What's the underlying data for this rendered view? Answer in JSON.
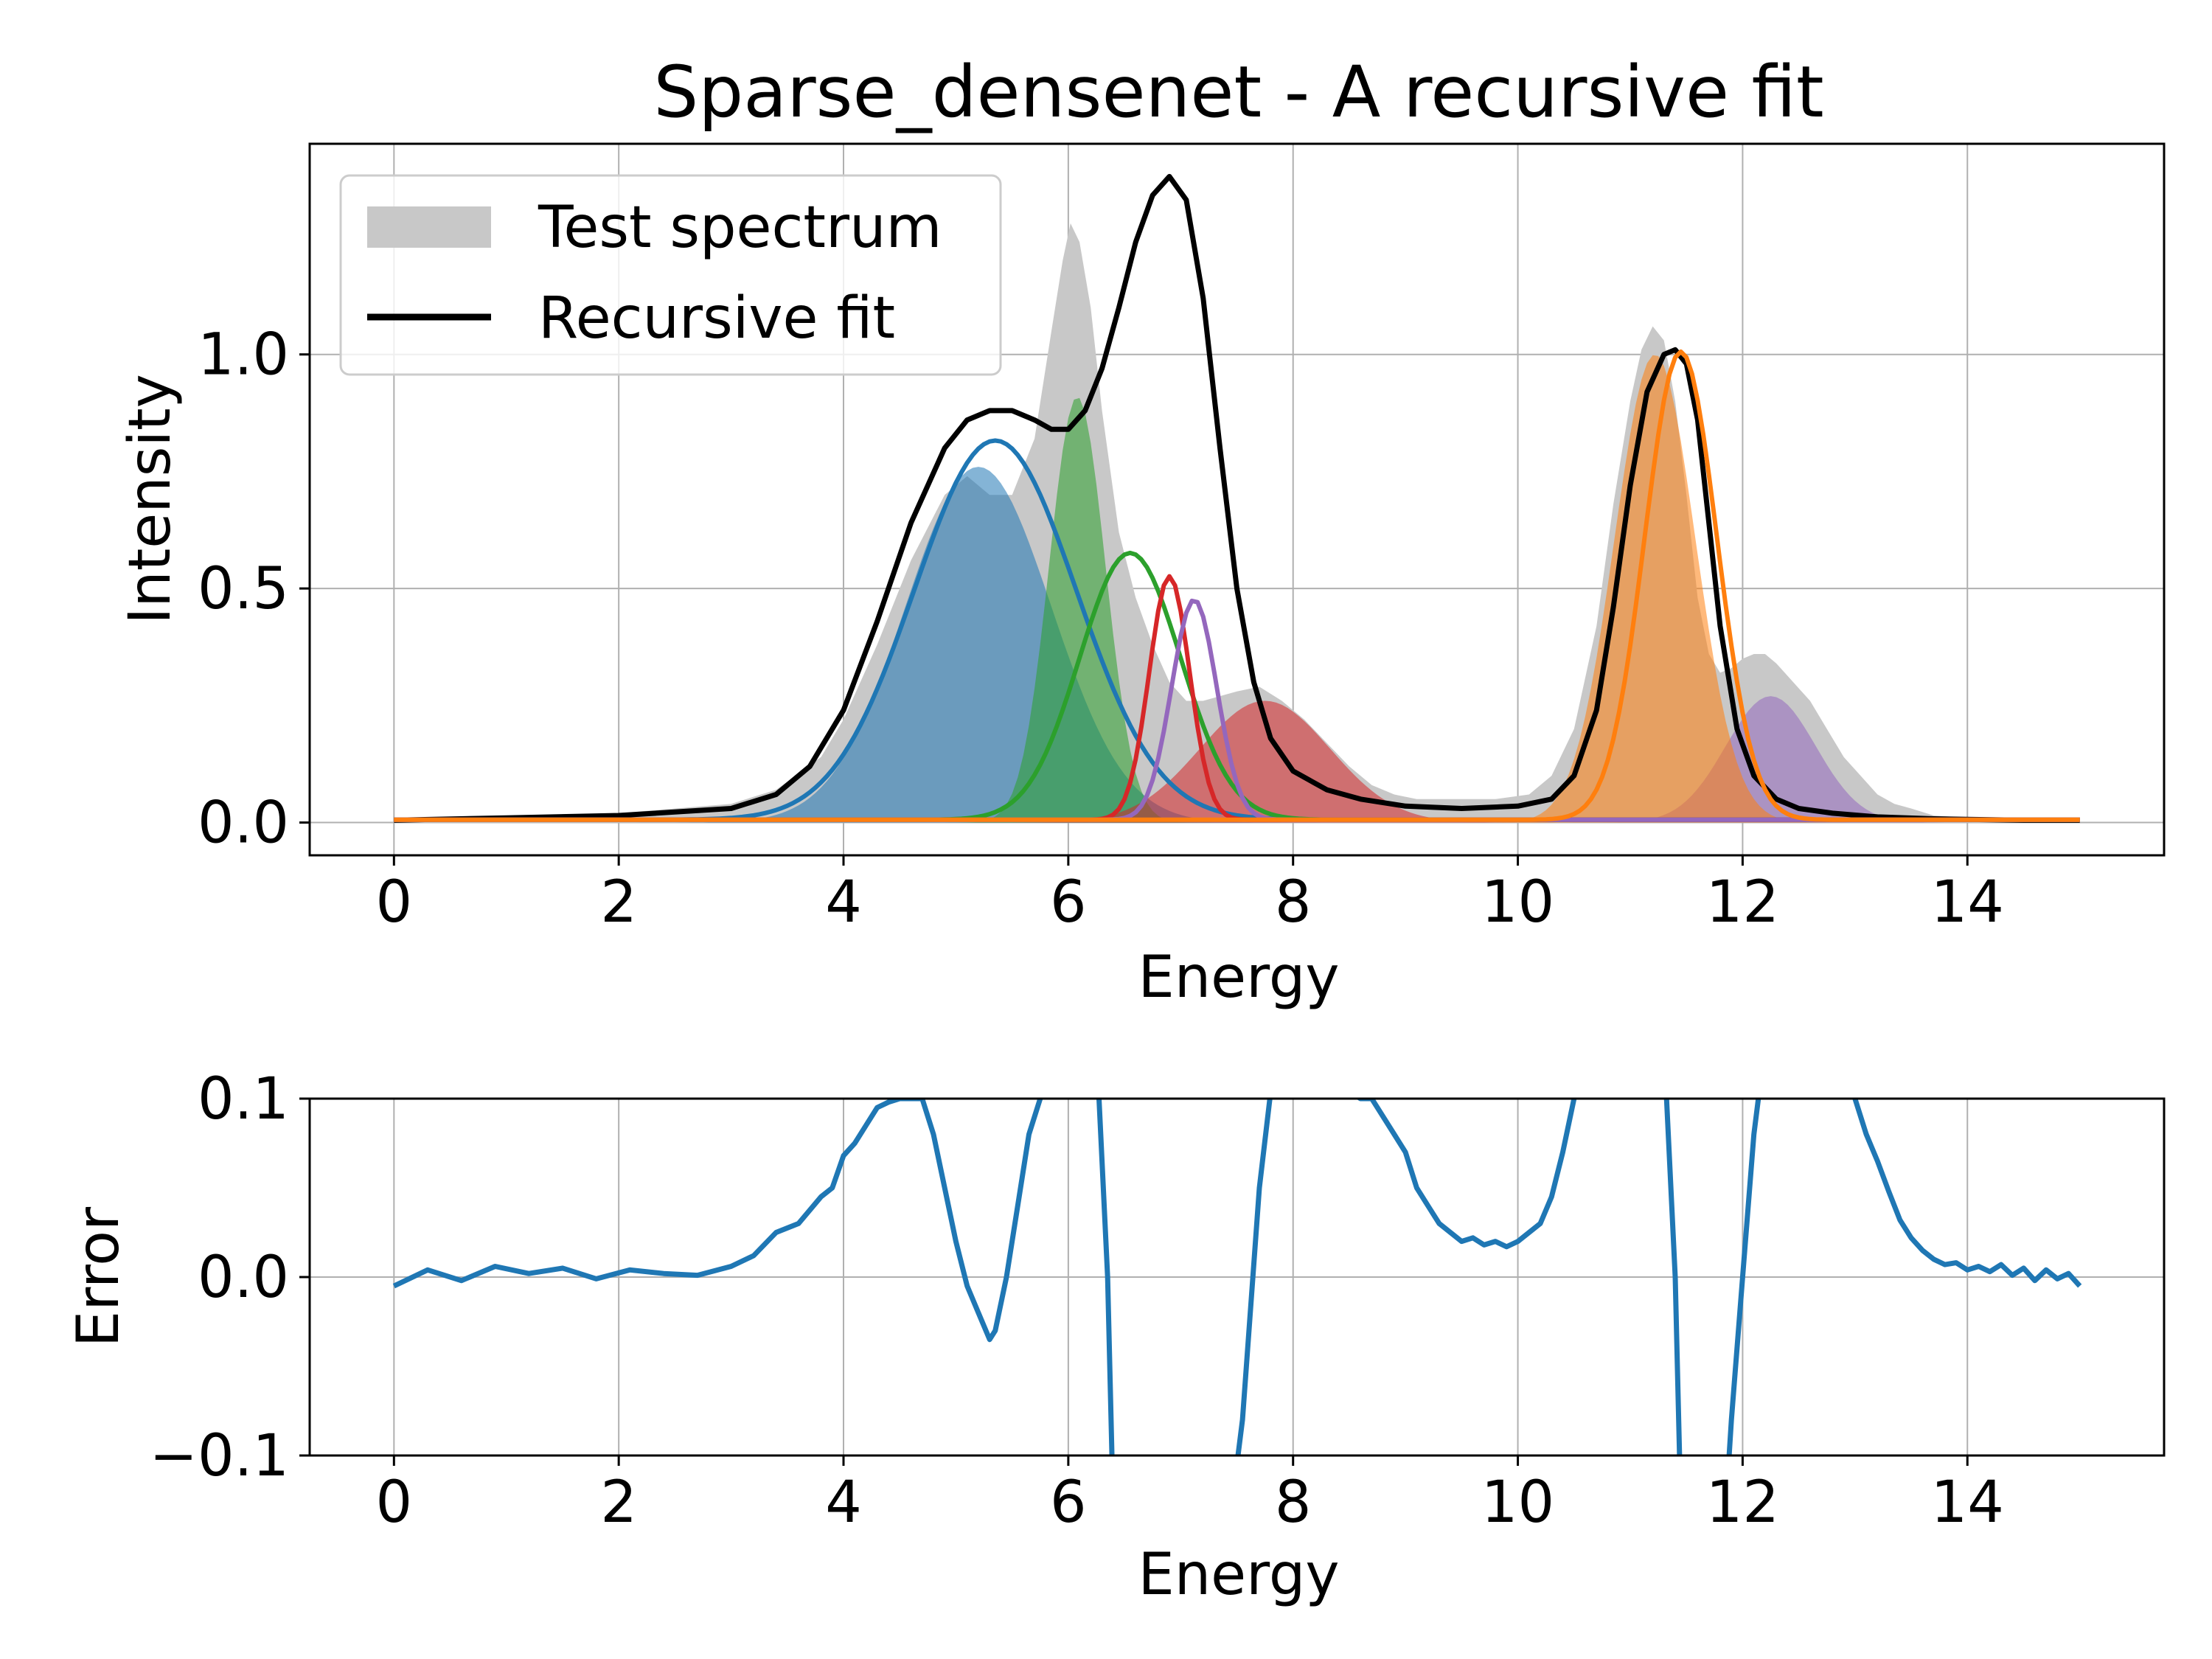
{
  "chart_data": [
    {
      "type": "area",
      "title": "Sparse_densenet - A recursive fit",
      "xlabel": "Energy",
      "ylabel": "Intensity",
      "xlim": [
        -0.75,
        15.75
      ],
      "ylim": [
        -0.07,
        1.45
      ],
      "xticks": [
        "0",
        "2",
        "4",
        "6",
        "8",
        "10",
        "12",
        "14"
      ],
      "xtick_values": [
        0,
        2,
        4,
        6,
        8,
        10,
        12,
        14
      ],
      "yticks": [
        "0.0",
        "0.5",
        "1.0"
      ],
      "ytick_values": [
        0,
        0.5,
        1.0
      ],
      "grid": true,
      "legend_position": "top-left",
      "legend": [
        {
          "label": "Test spectrum",
          "kind": "patch",
          "color": "#c8c8c8"
        },
        {
          "label": "Recursive fit",
          "kind": "line",
          "color": "#000000"
        }
      ],
      "test_spectrum": {
        "name": "Test spectrum",
        "color": "#c8c8c8",
        "x": [
          0,
          1,
          2,
          3,
          3.4,
          3.8,
          4.0,
          4.3,
          4.6,
          4.9,
          5.1,
          5.3,
          5.5,
          5.7,
          5.85,
          5.95,
          6.02,
          6.1,
          6.2,
          6.3,
          6.45,
          6.6,
          6.75,
          6.9,
          7.05,
          7.2,
          7.35,
          7.5,
          7.7,
          7.9,
          8.1,
          8.3,
          8.5,
          8.7,
          8.9,
          9.1,
          9.3,
          9.5,
          9.8,
          10.1,
          10.3,
          10.5,
          10.7,
          10.85,
          11.0,
          11.1,
          11.2,
          11.3,
          11.4,
          11.5,
          11.6,
          11.7,
          11.8,
          11.9,
          12.0,
          12.1,
          12.2,
          12.3,
          12.45,
          12.6,
          12.75,
          12.9,
          13.05,
          13.2,
          13.35,
          13.5,
          13.7,
          14.0,
          14.5,
          15.0
        ],
        "values": [
          0.005,
          0.01,
          0.02,
          0.04,
          0.07,
          0.14,
          0.22,
          0.38,
          0.56,
          0.7,
          0.74,
          0.7,
          0.7,
          0.82,
          1.05,
          1.2,
          1.28,
          1.24,
          1.1,
          0.88,
          0.62,
          0.48,
          0.38,
          0.3,
          0.26,
          0.26,
          0.27,
          0.28,
          0.29,
          0.26,
          0.22,
          0.17,
          0.12,
          0.08,
          0.06,
          0.05,
          0.05,
          0.05,
          0.05,
          0.06,
          0.1,
          0.2,
          0.42,
          0.68,
          0.9,
          1.01,
          1.06,
          1.03,
          0.9,
          0.7,
          0.48,
          0.36,
          0.32,
          0.33,
          0.35,
          0.36,
          0.36,
          0.34,
          0.3,
          0.26,
          0.2,
          0.14,
          0.1,
          0.06,
          0.04,
          0.03,
          0.015,
          0.01,
          0.005,
          0.005
        ]
      },
      "recursive_fit": {
        "name": "Recursive fit",
        "color": "#000000",
        "x": [
          0,
          1,
          2,
          3,
          3.4,
          3.7,
          4.0,
          4.3,
          4.6,
          4.9,
          5.1,
          5.3,
          5.5,
          5.7,
          5.85,
          6.0,
          6.15,
          6.3,
          6.45,
          6.6,
          6.75,
          6.9,
          7.05,
          7.2,
          7.35,
          7.5,
          7.65,
          7.8,
          8.0,
          8.3,
          8.6,
          9.0,
          9.5,
          10.0,
          10.3,
          10.5,
          10.7,
          10.85,
          11.0,
          11.15,
          11.3,
          11.4,
          11.5,
          11.6,
          11.7,
          11.8,
          11.95,
          12.1,
          12.3,
          12.5,
          12.8,
          13.2,
          13.7,
          14.5,
          15.0
        ],
        "values": [
          0.005,
          0.01,
          0.015,
          0.03,
          0.06,
          0.12,
          0.24,
          0.43,
          0.64,
          0.8,
          0.86,
          0.88,
          0.88,
          0.86,
          0.84,
          0.84,
          0.88,
          0.97,
          1.1,
          1.24,
          1.34,
          1.38,
          1.33,
          1.12,
          0.8,
          0.5,
          0.3,
          0.18,
          0.11,
          0.07,
          0.05,
          0.035,
          0.03,
          0.035,
          0.05,
          0.1,
          0.24,
          0.46,
          0.72,
          0.92,
          1.0,
          1.01,
          0.98,
          0.86,
          0.64,
          0.42,
          0.2,
          0.1,
          0.05,
          0.03,
          0.02,
          0.012,
          0.008,
          0.005,
          0.005
        ]
      },
      "components": [
        {
          "color": "#1f77b4",
          "fill": "#1f77b4",
          "filled_center": 5.2,
          "filled_amp": 0.76,
          "filled_sigma": 0.65,
          "line_center": 5.35,
          "line_amp": 0.81,
          "line_sigma": 0.72
        },
        {
          "color": "#2ca02c",
          "fill": "#2ca02c",
          "filled_center": 6.08,
          "filled_amp": 0.91,
          "filled_sigma": 0.25,
          "line_center": 6.55,
          "line_amp": 0.57,
          "line_sigma": 0.45
        },
        {
          "color": "#d62728",
          "fill": "#d62728",
          "filled_center": 7.75,
          "filled_amp": 0.26,
          "filled_sigma": 0.58,
          "line_center": 6.9,
          "line_amp": 0.52,
          "line_sigma": 0.18
        },
        {
          "color": "#9467bd",
          "fill": "#9467bd",
          "filled_center": 12.25,
          "filled_amp": 0.27,
          "filled_sigma": 0.4,
          "line_center": 7.12,
          "line_amp": 0.47,
          "line_sigma": 0.2
        },
        {
          "color": "#ff7f0e",
          "fill": "#ff7f0e",
          "filled_center": 11.22,
          "filled_amp": 1.0,
          "filled_sigma": 0.36,
          "line_center": 11.45,
          "line_amp": 1.0,
          "line_sigma": 0.32
        }
      ]
    },
    {
      "type": "line",
      "title": "",
      "xlabel": "Energy",
      "ylabel": "Error",
      "xlim": [
        -0.75,
        15.75
      ],
      "ylim": [
        -0.1,
        0.1
      ],
      "xticks": [
        "0",
        "2",
        "4",
        "6",
        "8",
        "10",
        "12",
        "14"
      ],
      "xtick_values": [
        0,
        2,
        4,
        6,
        8,
        10,
        12,
        14
      ],
      "yticks": [
        "−0.1",
        "0.0",
        "0.1"
      ],
      "ytick_values": [
        -0.1,
        0,
        0.1
      ],
      "grid": true,
      "series": [
        {
          "color": "#1f77b4",
          "x": [
            0,
            0.3,
            0.6,
            0.9,
            1.2,
            1.5,
            1.8,
            2.1,
            2.4,
            2.7,
            3.0,
            3.2,
            3.4,
            3.6,
            3.8,
            3.9,
            4.0,
            4.1,
            4.2,
            4.3,
            4.4,
            4.5,
            4.6,
            4.7,
            4.8,
            4.9,
            5.0,
            5.1,
            5.2,
            5.3,
            5.35,
            5.45,
            5.55,
            5.65,
            5.75,
            5.85,
            6.25,
            6.35,
            6.4,
            7.45,
            7.55,
            7.7,
            7.85,
            8.6,
            8.7,
            8.8,
            8.9,
            9.0,
            9.1,
            9.2,
            9.3,
            9.4,
            9.5,
            9.6,
            9.7,
            9.8,
            9.9,
            10.0,
            10.1,
            10.2,
            10.3,
            10.4,
            10.5,
            10.6,
            11.3,
            11.4,
            11.45,
            11.85,
            11.9,
            12.0,
            12.1,
            12.2,
            12.95,
            13.0,
            13.1,
            13.2,
            13.3,
            13.4,
            13.5,
            13.6,
            13.7,
            13.8,
            13.9,
            14.0,
            14.1,
            14.2,
            14.3,
            14.4,
            14.5,
            14.6,
            14.7,
            14.8,
            14.9,
            15.0
          ],
          "values": [
            -0.005,
            0.004,
            -0.002,
            0.006,
            0.002,
            0.005,
            -0.001,
            0.004,
            0.002,
            0.001,
            0.006,
            0.012,
            0.025,
            0.03,
            0.045,
            0.05,
            0.068,
            0.075,
            0.085,
            0.095,
            0.098,
            0.1,
            0.1,
            0.1,
            0.08,
            0.05,
            0.02,
            -0.005,
            -0.02,
            -0.035,
            -0.03,
            0.0,
            0.04,
            0.08,
            0.1,
            0.13,
            0.13,
            0.0,
            -0.13,
            -0.13,
            -0.08,
            0.05,
            0.13,
            0.1,
            0.1,
            0.09,
            0.08,
            0.07,
            0.05,
            0.04,
            0.03,
            0.025,
            0.02,
            0.022,
            0.018,
            0.02,
            0.017,
            0.02,
            0.025,
            0.03,
            0.045,
            0.07,
            0.1,
            0.13,
            0.13,
            0.0,
            -0.13,
            -0.13,
            -0.08,
            0.0,
            0.08,
            0.13,
            0.13,
            0.1,
            0.08,
            0.065,
            0.048,
            0.032,
            0.022,
            0.015,
            0.01,
            0.007,
            0.008,
            0.004,
            0.006,
            0.003,
            0.007,
            0.001,
            0.005,
            -0.002,
            0.004,
            -0.001,
            0.002,
            -0.005
          ]
        }
      ]
    }
  ]
}
